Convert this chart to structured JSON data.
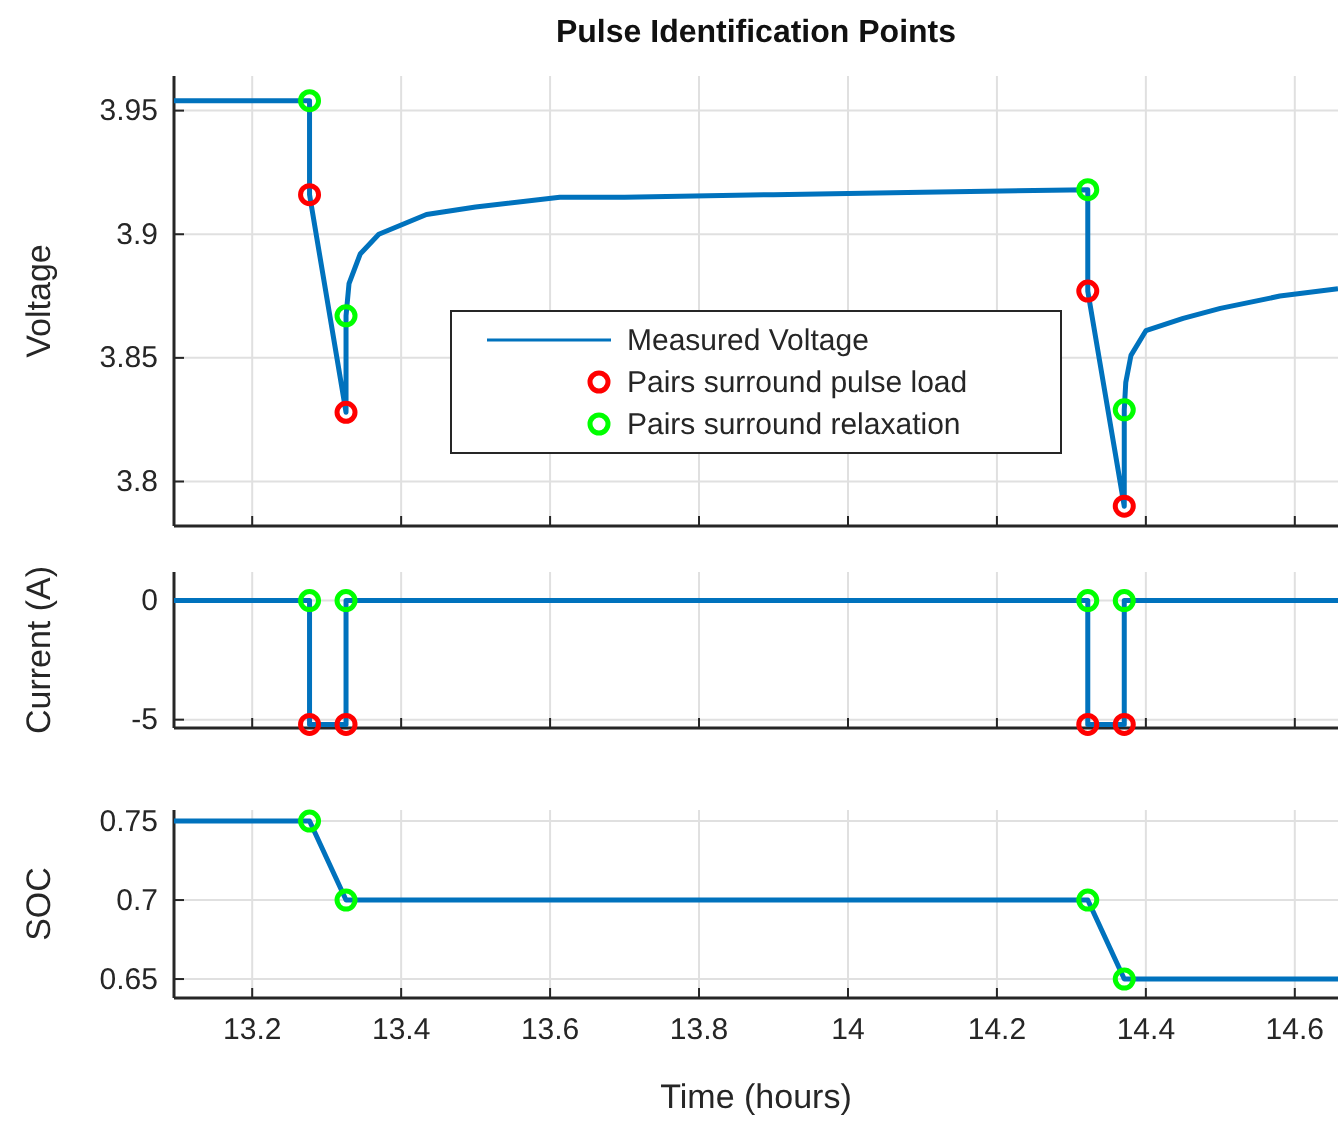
{
  "chart_data": [
    {
      "type": "line",
      "title": "Pulse Identification Points",
      "ylabel": "Voltage",
      "xlim": [
        13.095,
        14.658
      ],
      "xticks": [
        13.2,
        13.4,
        13.6,
        13.8,
        14,
        14.2,
        14.4,
        14.6
      ],
      "ylim": [
        3.782,
        3.964
      ],
      "yticks": [
        3.8,
        3.85,
        3.9,
        3.95
      ],
      "tick_labels": "y",
      "grid": true,
      "legend": "center",
      "series": [
        {
          "type": "line",
          "name": "Measured Voltage",
          "color": "#0072bd",
          "x": [
            13.095,
            13.277,
            13.277,
            13.326,
            13.326,
            13.33,
            13.345,
            13.37,
            13.434,
            13.5,
            13.613,
            13.7,
            13.9,
            14.1,
            14.322,
            14.322,
            14.371,
            14.371,
            14.373,
            14.38,
            14.4,
            14.45,
            14.5,
            14.58,
            14.658
          ],
          "values": [
            3.954,
            3.954,
            3.916,
            3.828,
            3.867,
            3.88,
            3.892,
            3.9,
            3.908,
            3.911,
            3.915,
            3.915,
            3.916,
            3.917,
            3.918,
            3.877,
            3.79,
            3.829,
            3.84,
            3.851,
            3.861,
            3.866,
            3.87,
            3.875,
            3.878
          ]
        },
        {
          "type": "scatter",
          "name": "Pairs surround pulse load",
          "color": "#ff0000",
          "marker": "circle",
          "x": [
            13.277,
            13.326,
            14.322,
            14.371
          ],
          "values": [
            3.916,
            3.828,
            3.877,
            3.79
          ]
        },
        {
          "type": "scatter",
          "name": "Pairs surround relaxation",
          "color": "#00ff00",
          "marker": "circle",
          "x": [
            13.277,
            13.326,
            14.322,
            14.371
          ],
          "values": [
            3.954,
            3.867,
            3.918,
            3.829
          ]
        }
      ]
    },
    {
      "type": "line",
      "ylabel": "Current (A)",
      "xlim": [
        13.095,
        14.658
      ],
      "xticks": [
        13.2,
        13.4,
        13.6,
        13.8,
        14,
        14.2,
        14.4,
        14.6
      ],
      "ylim": [
        -5.35,
        1.2
      ],
      "yticks": [
        -5,
        0
      ],
      "tick_labels": "y",
      "grid": true,
      "series": [
        {
          "type": "line",
          "color": "#0072bd",
          "x": [
            13.095,
            13.277,
            13.277,
            13.326,
            13.326,
            14.322,
            14.322,
            14.371,
            14.371,
            14.658
          ],
          "values": [
            0,
            0,
            -5.2,
            -5.2,
            0,
            0,
            -5.2,
            -5.2,
            0,
            0
          ]
        },
        {
          "type": "scatter",
          "color": "#ff0000",
          "marker": "circle",
          "x": [
            13.277,
            13.326,
            14.322,
            14.371
          ],
          "values": [
            -5.2,
            -5.2,
            -5.2,
            -5.2
          ]
        },
        {
          "type": "scatter",
          "color": "#00ff00",
          "marker": "circle",
          "x": [
            13.277,
            13.326,
            14.322,
            14.371
          ],
          "values": [
            0,
            0,
            0,
            0
          ]
        }
      ]
    },
    {
      "type": "line",
      "xlabel": "Time (hours)",
      "ylabel": "SOC",
      "xlim": [
        13.095,
        14.658
      ],
      "xticks": [
        13.2,
        13.4,
        13.6,
        13.8,
        14,
        14.2,
        14.4,
        14.6
      ],
      "ylim": [
        0.638,
        0.757
      ],
      "yticks": [
        0.65,
        0.7,
        0.75
      ],
      "grid": true,
      "series": [
        {
          "type": "line",
          "color": "#0072bd",
          "x": [
            13.095,
            13.277,
            13.326,
            14.322,
            14.371,
            14.658
          ],
          "values": [
            0.75,
            0.75,
            0.7,
            0.7,
            0.65,
            0.65
          ]
        },
        {
          "type": "scatter",
          "color": "#00ff00",
          "marker": "circle",
          "x": [
            13.277,
            13.326,
            14.322,
            14.371
          ],
          "values": [
            0.75,
            0.7,
            0.7,
            0.65
          ]
        }
      ]
    }
  ]
}
